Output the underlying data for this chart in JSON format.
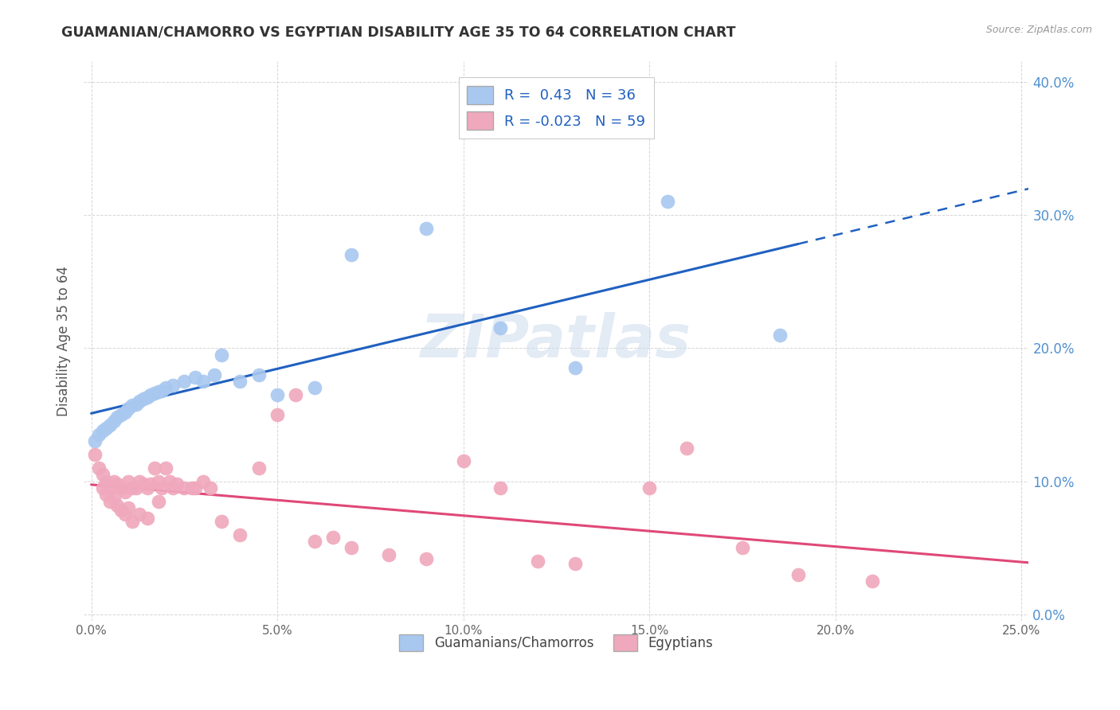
{
  "title": "GUAMANIAN/CHAMORRO VS EGYPTIAN DISABILITY AGE 35 TO 64 CORRELATION CHART",
  "source": "Source: ZipAtlas.com",
  "ylabel": "Disability Age 35 to 64",
  "xlim": [
    -0.002,
    0.252
  ],
  "ylim": [
    -0.005,
    0.415
  ],
  "xticks": [
    0.0,
    0.05,
    0.1,
    0.15,
    0.2,
    0.25
  ],
  "yticks": [
    0.0,
    0.1,
    0.2,
    0.3,
    0.4
  ],
  "xtick_labels": [
    "0.0%",
    "5.0%",
    "10.0%",
    "15.0%",
    "20.0%",
    "25.0%"
  ],
  "ytick_labels": [
    "0.0%",
    "10.0%",
    "20.0%",
    "30.0%",
    "40.0%"
  ],
  "guamanian_R": 0.43,
  "guamanian_N": 36,
  "egyptian_R": -0.023,
  "egyptian_N": 59,
  "guamanian_color": "#a8c8f0",
  "egyptian_color": "#f0a8bc",
  "line_guamanian_color": "#2060c0",
  "line_egyptian_color": "#e04878",
  "watermark": "ZIPatlas",
  "background_color": "#ffffff",
  "guamanian_x": [
    0.001,
    0.002,
    0.003,
    0.004,
    0.005,
    0.006,
    0.007,
    0.008,
    0.009,
    0.01,
    0.011,
    0.012,
    0.013,
    0.014,
    0.015,
    0.016,
    0.017,
    0.018,
    0.019,
    0.02,
    0.022,
    0.025,
    0.028,
    0.03,
    0.033,
    0.035,
    0.04,
    0.045,
    0.05,
    0.06,
    0.07,
    0.09,
    0.11,
    0.13,
    0.155,
    0.185
  ],
  "guamanian_y": [
    0.13,
    0.135,
    0.138,
    0.14,
    0.142,
    0.145,
    0.148,
    0.15,
    0.152,
    0.155,
    0.157,
    0.158,
    0.16,
    0.162,
    0.163,
    0.165,
    0.166,
    0.167,
    0.168,
    0.17,
    0.172,
    0.175,
    0.178,
    0.175,
    0.18,
    0.195,
    0.175,
    0.18,
    0.165,
    0.17,
    0.27,
    0.29,
    0.215,
    0.185,
    0.31,
    0.21
  ],
  "egyptian_x": [
    0.001,
    0.002,
    0.003,
    0.003,
    0.004,
    0.004,
    0.005,
    0.005,
    0.006,
    0.006,
    0.007,
    0.007,
    0.008,
    0.008,
    0.009,
    0.009,
    0.01,
    0.01,
    0.011,
    0.011,
    0.012,
    0.013,
    0.013,
    0.014,
    0.015,
    0.015,
    0.016,
    0.017,
    0.018,
    0.018,
    0.019,
    0.02,
    0.021,
    0.022,
    0.023,
    0.025,
    0.027,
    0.028,
    0.03,
    0.032,
    0.035,
    0.04,
    0.045,
    0.05,
    0.055,
    0.06,
    0.065,
    0.07,
    0.08,
    0.09,
    0.1,
    0.11,
    0.12,
    0.13,
    0.15,
    0.16,
    0.175,
    0.19,
    0.21
  ],
  "egyptian_y": [
    0.12,
    0.11,
    0.105,
    0.095,
    0.1,
    0.09,
    0.095,
    0.085,
    0.1,
    0.088,
    0.098,
    0.082,
    0.095,
    0.078,
    0.092,
    0.075,
    0.1,
    0.08,
    0.095,
    0.07,
    0.095,
    0.1,
    0.075,
    0.098,
    0.095,
    0.072,
    0.098,
    0.11,
    0.1,
    0.085,
    0.095,
    0.11,
    0.1,
    0.095,
    0.098,
    0.095,
    0.095,
    0.095,
    0.1,
    0.095,
    0.07,
    0.06,
    0.11,
    0.15,
    0.165,
    0.055,
    0.058,
    0.05,
    0.045,
    0.042,
    0.115,
    0.095,
    0.04,
    0.038,
    0.095,
    0.125,
    0.05,
    0.03,
    0.025
  ],
  "legend_bottom_labels": [
    "Guamanians/Chamorros",
    "Egyptians"
  ]
}
